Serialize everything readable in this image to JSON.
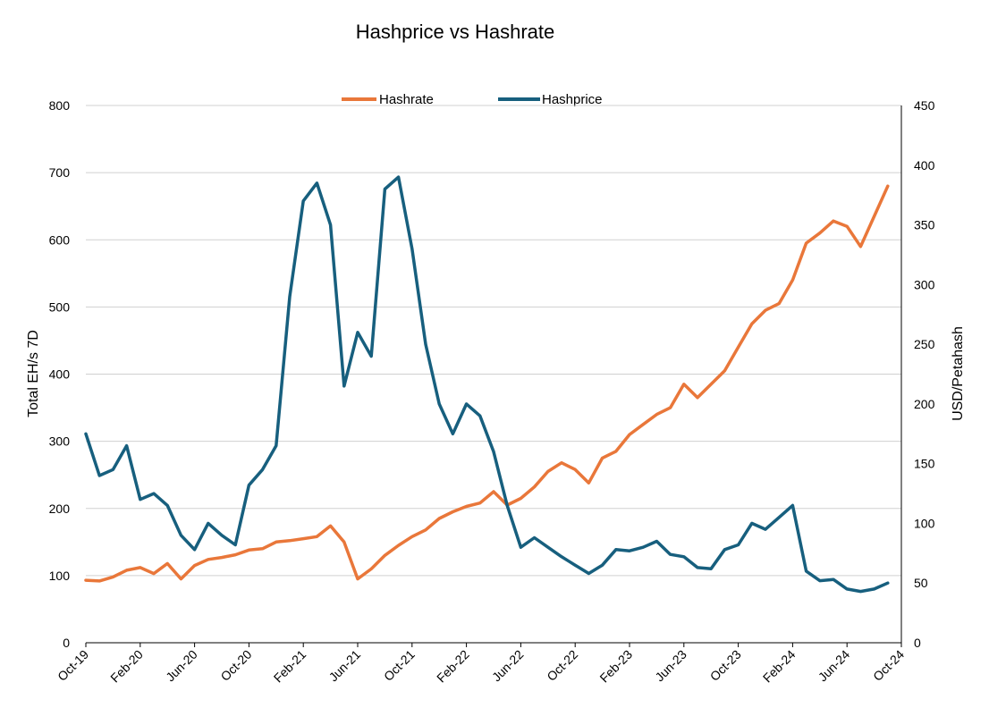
{
  "chart_data": {
    "type": "line",
    "title": "Hashprice vs Hashrate",
    "ylabel_left": "Total  EH/s  7D",
    "ylabel_right": "USD/Petahash",
    "xlabel": "",
    "grid": true,
    "legend_position": "top-center",
    "x_ticks": [
      "Oct-19",
      "Feb-20",
      "Jun-20",
      "Oct-20",
      "Feb-21",
      "Jun-21",
      "Oct-21",
      "Feb-22",
      "Jun-22",
      "Oct-22",
      "Feb-23",
      "Jun-23",
      "Oct-23",
      "Feb-24",
      "Jun-24",
      "Oct-24"
    ],
    "ylim_left": [
      0,
      800
    ],
    "yticks_left": [
      0,
      100,
      200,
      300,
      400,
      500,
      600,
      700,
      800
    ],
    "ylim_right": [
      0,
      450
    ],
    "yticks_right": [
      0,
      50,
      100,
      150,
      200,
      250,
      300,
      350,
      400,
      450
    ],
    "series": [
      {
        "name": "Hashrate",
        "axis": "left",
        "color": "#E9773A",
        "x": [
          "2019-10",
          "2019-11",
          "2019-12",
          "2020-01",
          "2020-02",
          "2020-03",
          "2020-04",
          "2020-05",
          "2020-06",
          "2020-07",
          "2020-08",
          "2020-09",
          "2020-10",
          "2020-11",
          "2020-12",
          "2021-01",
          "2021-02",
          "2021-03",
          "2021-04",
          "2021-05",
          "2021-06",
          "2021-07",
          "2021-08",
          "2021-09",
          "2021-10",
          "2021-11",
          "2021-12",
          "2022-01",
          "2022-02",
          "2022-03",
          "2022-04",
          "2022-05",
          "2022-06",
          "2022-07",
          "2022-08",
          "2022-09",
          "2022-10",
          "2022-11",
          "2022-12",
          "2023-01",
          "2023-02",
          "2023-03",
          "2023-04",
          "2023-05",
          "2023-06",
          "2023-07",
          "2023-08",
          "2023-09",
          "2023-10",
          "2023-11",
          "2023-12",
          "2024-01",
          "2024-02",
          "2024-03",
          "2024-04",
          "2024-05",
          "2024-06",
          "2024-07",
          "2024-08",
          "2024-09"
        ],
        "values": [
          93,
          92,
          98,
          108,
          112,
          103,
          118,
          95,
          115,
          124,
          127,
          131,
          138,
          140,
          150,
          152,
          155,
          158,
          174,
          150,
          95,
          110,
          130,
          145,
          158,
          168,
          185,
          195,
          203,
          208,
          225,
          205,
          215,
          232,
          255,
          268,
          258,
          238,
          275,
          285,
          310,
          325,
          340,
          350,
          385,
          365,
          385,
          405,
          440,
          475,
          495,
          505,
          540,
          595,
          610,
          628,
          620,
          590,
          635,
          680
        ]
      },
      {
        "name": "Hashprice",
        "axis": "right",
        "color": "#175F7E",
        "x": [
          "2019-10",
          "2019-11",
          "2019-12",
          "2020-01",
          "2020-02",
          "2020-03",
          "2020-04",
          "2020-05",
          "2020-06",
          "2020-07",
          "2020-08",
          "2020-09",
          "2020-10",
          "2020-11",
          "2020-12",
          "2021-01",
          "2021-02",
          "2021-03",
          "2021-04",
          "2021-05",
          "2021-06",
          "2021-07",
          "2021-08",
          "2021-09",
          "2021-10",
          "2021-11",
          "2021-12",
          "2022-01",
          "2022-02",
          "2022-03",
          "2022-04",
          "2022-05",
          "2022-06",
          "2022-07",
          "2022-08",
          "2022-09",
          "2022-10",
          "2022-11",
          "2022-12",
          "2023-01",
          "2023-02",
          "2023-03",
          "2023-04",
          "2023-05",
          "2023-06",
          "2023-07",
          "2023-08",
          "2023-09",
          "2023-10",
          "2023-11",
          "2023-12",
          "2024-01",
          "2024-02",
          "2024-03",
          "2024-04",
          "2024-05",
          "2024-06",
          "2024-07",
          "2024-08",
          "2024-09"
        ],
        "values": [
          175,
          140,
          145,
          165,
          120,
          125,
          115,
          90,
          78,
          100,
          90,
          82,
          132,
          145,
          165,
          290,
          370,
          385,
          350,
          215,
          260,
          240,
          380,
          390,
          330,
          250,
          200,
          175,
          200,
          190,
          160,
          115,
          80,
          88,
          80,
          72,
          65,
          58,
          65,
          78,
          77,
          80,
          85,
          74,
          72,
          63,
          62,
          78,
          82,
          100,
          95,
          105,
          115,
          60,
          52,
          53,
          45,
          43,
          45,
          50
        ]
      }
    ]
  }
}
